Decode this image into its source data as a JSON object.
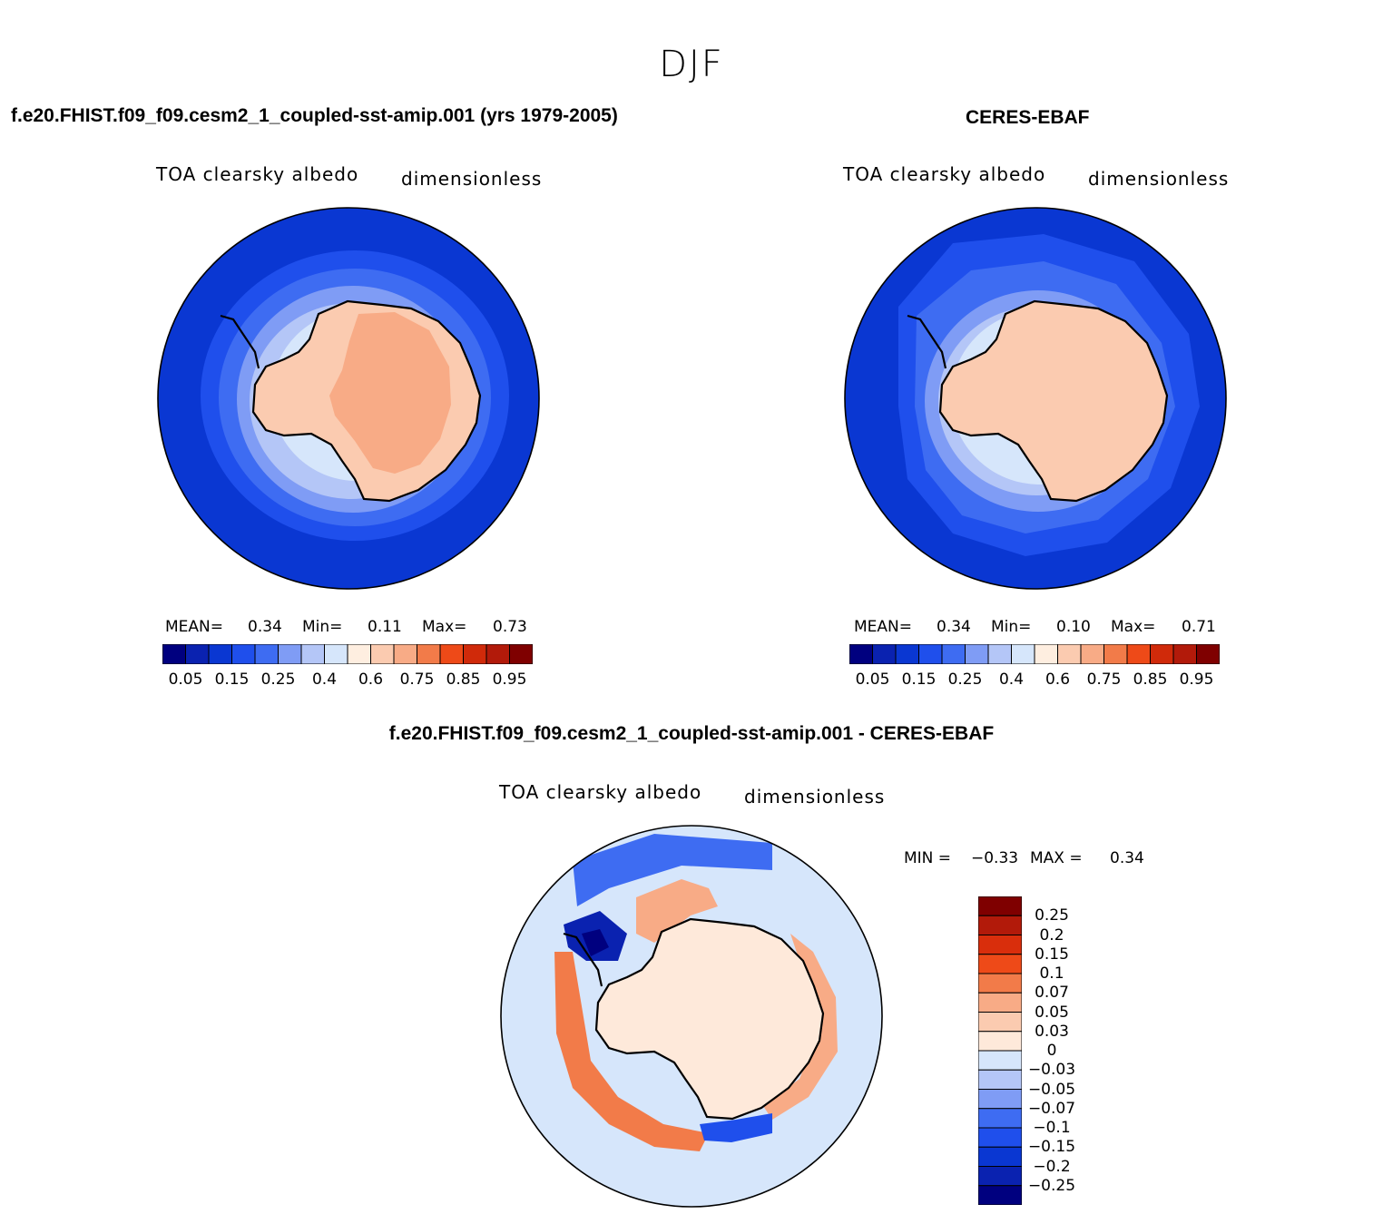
{
  "season": "DJF",
  "palette": [
    "#00007f",
    "#0a22b0",
    "#0a37d2",
    "#1f4fec",
    "#3e6cf2",
    "#7f9cf5",
    "#b4c6f7",
    "#d6e6fb",
    "#feeee0",
    "#fbcbb0",
    "#f8ab86",
    "#f27b49",
    "#ee4a18",
    "#d02a0a",
    "#b21a0a",
    "#7f0000"
  ],
  "diff_palette": [
    "#7f0000",
    "#b21a0a",
    "#d92e0c",
    "#ee4a18",
    "#f27b49",
    "#f8ab86",
    "#fbcbb0",
    "#fee9da",
    "#d6e6fb",
    "#b4c6f7",
    "#7f9cf5",
    "#3e6cf2",
    "#1f4fec",
    "#0a37d2",
    "#0a22b0",
    "#00007f"
  ],
  "panels": {
    "model": {
      "title": "f.e20.FHIST.f09_f09.cesm2_1_coupled-sst-amip.001 (yrs 1979-2005)",
      "variable": "TOA clearsky albedo",
      "units": "dimensionless",
      "mean_label": "MEAN=",
      "mean_value": "0.34",
      "min_label": "Min=",
      "min_value": "0.11",
      "max_label": "Max=",
      "max_value": "0.73",
      "colorbar_ticks": [
        "0.05",
        "0.15",
        "0.25",
        "0.4",
        "0.6",
        "0.75",
        "0.85",
        "0.95"
      ]
    },
    "obs": {
      "title": "CERES-EBAF",
      "variable": "TOA clearsky albedo",
      "units": "dimensionless",
      "mean_label": "MEAN=",
      "mean_value": "0.34",
      "min_label": "Min=",
      "min_value": "0.10",
      "max_label": "Max=",
      "max_value": "0.71",
      "colorbar_ticks": [
        "0.05",
        "0.15",
        "0.25",
        "0.4",
        "0.6",
        "0.75",
        "0.85",
        "0.95"
      ]
    },
    "diff": {
      "title": "f.e20.FHIST.f09_f09.cesm2_1_coupled-sst-amip.001 - CERES-EBAF",
      "variable": "TOA clearsky albedo",
      "units": "dimensionless",
      "min_label": "MIN =",
      "min_value": "−0.33",
      "max_label": "MAX =",
      "max_value": "0.34",
      "colorbar_ticks": [
        "0.25",
        "0.2",
        "0.15",
        "0.1",
        "0.07",
        "0.05",
        "0.03",
        "0",
        "−0.03",
        "−0.05",
        "−0.07",
        "−0.1",
        "−0.15",
        "−0.2",
        "−0.25"
      ]
    }
  }
}
